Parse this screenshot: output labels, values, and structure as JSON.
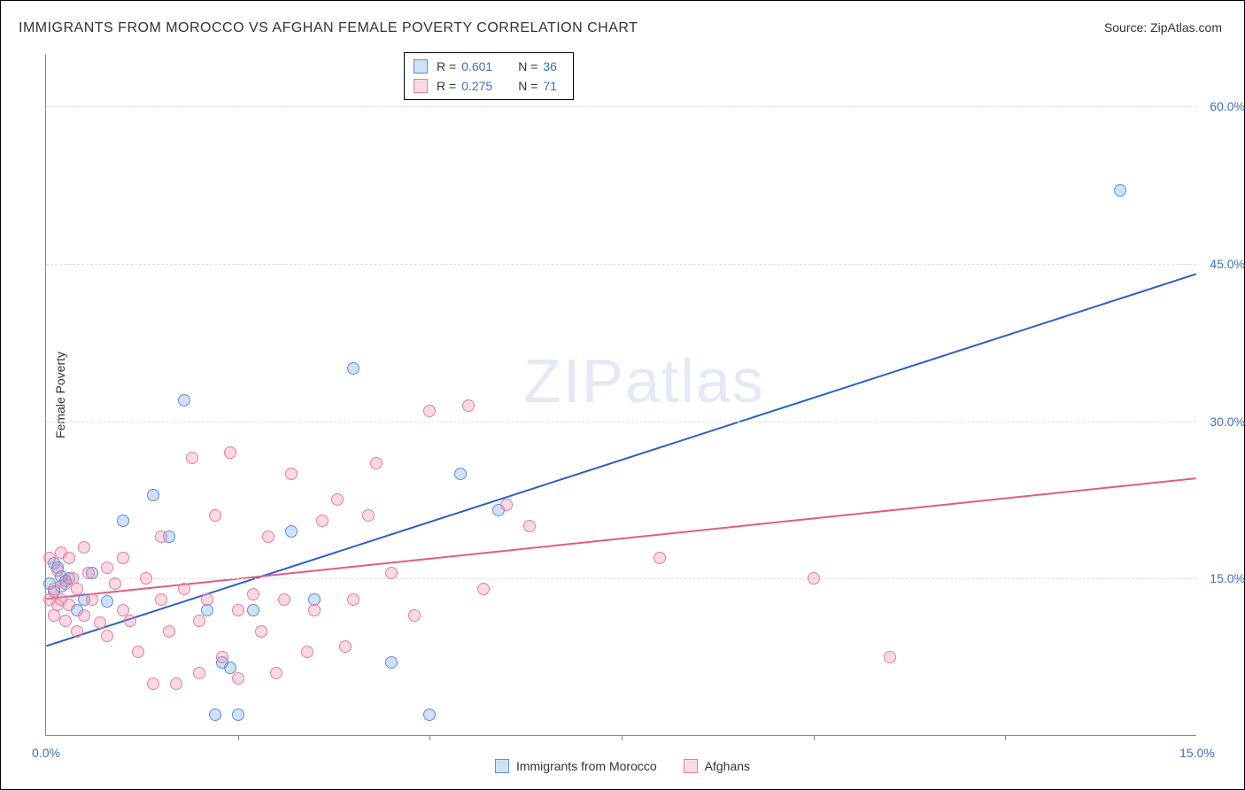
{
  "title": "IMMIGRANTS FROM MOROCCO VS AFGHAN FEMALE POVERTY CORRELATION CHART",
  "source_label": "Source:",
  "source_value": "ZipAtlas.com",
  "ylabel": "Female Poverty",
  "watermark": "ZIPatlas",
  "chart": {
    "type": "scatter",
    "xlim": [
      0,
      15
    ],
    "ylim": [
      0,
      65
    ],
    "xticks": [
      0,
      15
    ],
    "xtick_labels": [
      "0.0%",
      "15.0%"
    ],
    "xtick_marks": [
      2.5,
      5.0,
      7.5,
      10.0,
      12.5
    ],
    "yticks": [
      15,
      30,
      45,
      60
    ],
    "ytick_labels": [
      "15.0%",
      "30.0%",
      "45.0%",
      "60.0%"
    ],
    "background_color": "#ffffff",
    "grid_color": "#dddddd",
    "marker_radius": 7,
    "marker_border_width": 1.2,
    "line_width": 2,
    "series": [
      {
        "name": "Immigrants from Morocco",
        "fill_color": "rgba(117,168,227,0.35)",
        "stroke_color": "#5b8fd6",
        "line_color": "#2b5fc4",
        "r": "0.601",
        "n": "36",
        "trend": {
          "x1": 0,
          "y1": 8.5,
          "x2": 15,
          "y2": 44
        },
        "points": [
          [
            0.05,
            14.5
          ],
          [
            0.1,
            16.5
          ],
          [
            0.1,
            13.8
          ],
          [
            0.15,
            16.0
          ],
          [
            0.2,
            14.3
          ],
          [
            0.2,
            15.2
          ],
          [
            0.25,
            14.8
          ],
          [
            0.3,
            15.0
          ],
          [
            0.4,
            12.0
          ],
          [
            0.5,
            13.0
          ],
          [
            0.6,
            15.5
          ],
          [
            0.8,
            12.8
          ],
          [
            1.0,
            20.5
          ],
          [
            1.4,
            23.0
          ],
          [
            1.6,
            19.0
          ],
          [
            1.8,
            32.0
          ],
          [
            2.1,
            12.0
          ],
          [
            2.2,
            2.0
          ],
          [
            2.3,
            7.0
          ],
          [
            2.4,
            6.5
          ],
          [
            2.5,
            2.0
          ],
          [
            2.7,
            12.0
          ],
          [
            3.2,
            19.5
          ],
          [
            3.5,
            13.0
          ],
          [
            4.0,
            35.0
          ],
          [
            4.5,
            7.0
          ],
          [
            5.0,
            2.0
          ],
          [
            5.4,
            25.0
          ],
          [
            5.9,
            21.5
          ],
          [
            14.0,
            52.0
          ]
        ]
      },
      {
        "name": "Afghans",
        "fill_color": "rgba(239,150,178,0.35)",
        "stroke_color": "#e87ba3",
        "line_color": "#e05a8a",
        "r": "0.275",
        "n": "71",
        "trend": {
          "x1": 0,
          "y1": 13.0,
          "x2": 15,
          "y2": 24.5
        },
        "points": [
          [
            0.05,
            13.0
          ],
          [
            0.05,
            17.0
          ],
          [
            0.1,
            11.5
          ],
          [
            0.1,
            14.0
          ],
          [
            0.15,
            15.8
          ],
          [
            0.15,
            12.5
          ],
          [
            0.2,
            17.5
          ],
          [
            0.2,
            13.0
          ],
          [
            0.25,
            14.5
          ],
          [
            0.25,
            11.0
          ],
          [
            0.3,
            17.0
          ],
          [
            0.3,
            12.5
          ],
          [
            0.35,
            15.0
          ],
          [
            0.4,
            10.0
          ],
          [
            0.4,
            14.0
          ],
          [
            0.5,
            18.0
          ],
          [
            0.5,
            11.5
          ],
          [
            0.55,
            15.5
          ],
          [
            0.6,
            13.0
          ],
          [
            0.7,
            10.8
          ],
          [
            0.8,
            16.0
          ],
          [
            0.8,
            9.5
          ],
          [
            0.9,
            14.5
          ],
          [
            1.0,
            12.0
          ],
          [
            1.0,
            17.0
          ],
          [
            1.1,
            11.0
          ],
          [
            1.2,
            8.0
          ],
          [
            1.3,
            15.0
          ],
          [
            1.4,
            5.0
          ],
          [
            1.5,
            13.0
          ],
          [
            1.5,
            19.0
          ],
          [
            1.6,
            10.0
          ],
          [
            1.7,
            5.0
          ],
          [
            1.8,
            14.0
          ],
          [
            1.9,
            26.5
          ],
          [
            2.0,
            11.0
          ],
          [
            2.0,
            6.0
          ],
          [
            2.1,
            13.0
          ],
          [
            2.2,
            21.0
          ],
          [
            2.3,
            7.5
          ],
          [
            2.4,
            27.0
          ],
          [
            2.5,
            12.0
          ],
          [
            2.5,
            5.5
          ],
          [
            2.7,
            13.5
          ],
          [
            2.8,
            10.0
          ],
          [
            2.9,
            19.0
          ],
          [
            3.0,
            6.0
          ],
          [
            3.1,
            13.0
          ],
          [
            3.2,
            25.0
          ],
          [
            3.4,
            8.0
          ],
          [
            3.5,
            12.0
          ],
          [
            3.6,
            20.5
          ],
          [
            3.8,
            22.5
          ],
          [
            3.9,
            8.5
          ],
          [
            4.0,
            13.0
          ],
          [
            4.2,
            21.0
          ],
          [
            4.3,
            26.0
          ],
          [
            4.5,
            15.5
          ],
          [
            4.8,
            11.5
          ],
          [
            5.0,
            31.0
          ],
          [
            5.5,
            31.5
          ],
          [
            5.7,
            14.0
          ],
          [
            6.0,
            22.0
          ],
          [
            6.3,
            20.0
          ],
          [
            8.0,
            17.0
          ],
          [
            10.0,
            15.0
          ],
          [
            11.0,
            7.5
          ]
        ]
      }
    ]
  }
}
